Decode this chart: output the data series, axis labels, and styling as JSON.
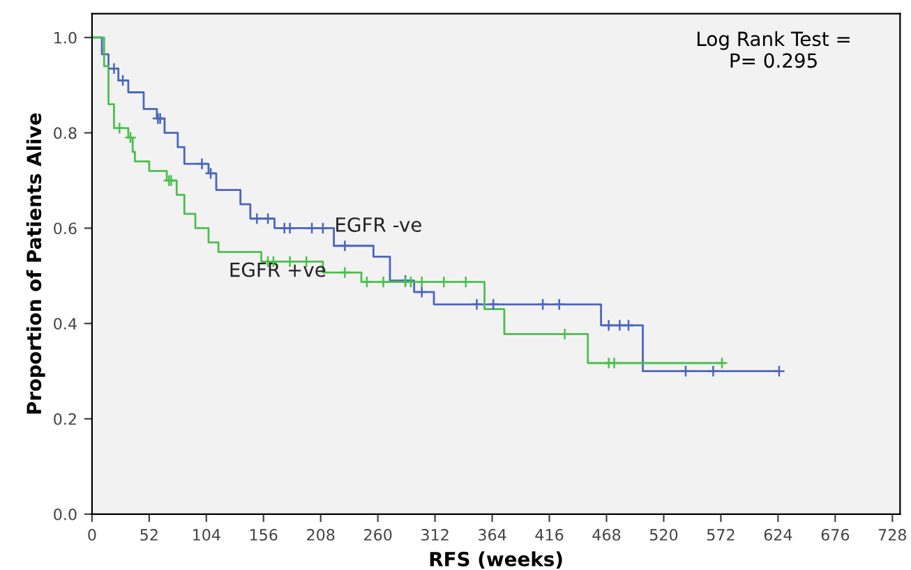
{
  "chart_data": {
    "type": "step",
    "xlabel": "RFS (weeks)",
    "ylabel": "Proportion of Patients Alive",
    "xlim": [
      0,
      735
    ],
    "xticks": [
      0,
      52,
      104,
      156,
      208,
      260,
      312,
      364,
      416,
      468,
      520,
      572,
      624,
      676,
      728
    ],
    "ylim": [
      0,
      1.05
    ],
    "yticks": [
      {
        "value": 0,
        "label": "0.0"
      },
      0.2,
      0.4,
      0.6,
      0.8,
      {
        "value": 1,
        "label": "1.0"
      }
    ],
    "grid": false,
    "legend": false,
    "annotations": [
      "Log Rank Test =\nP= 0.295"
    ],
    "series": [
      {
        "name": "EGFR -ve",
        "color": "#4a65c0",
        "x": [
          0,
          9,
          15,
          24,
          33,
          47,
          59,
          66,
          78,
          84,
          106,
          113,
          135,
          144,
          166,
          220,
          256,
          271,
          293,
          311,
          463,
          501,
          625
        ],
        "values": [
          1.0,
          0.965,
          0.935,
          0.91,
          0.885,
          0.85,
          0.83,
          0.8,
          0.77,
          0.735,
          0.715,
          0.68,
          0.65,
          0.62,
          0.6,
          0.563,
          0.54,
          0.49,
          0.466,
          0.44,
          0.396,
          0.3,
          0.3
        ]
      },
      {
        "name": "EGFR +ve",
        "color": "#4cbf4c",
        "x": [
          0,
          11,
          15,
          20,
          33,
          37,
          39,
          52,
          68,
          77,
          84,
          94,
          106,
          115,
          154,
          210,
          245,
          357,
          375,
          451,
          575
        ],
        "values": [
          1.0,
          0.94,
          0.86,
          0.81,
          0.79,
          0.76,
          0.74,
          0.72,
          0.7,
          0.67,
          0.63,
          0.6,
          0.57,
          0.55,
          0.53,
          0.507,
          0.487,
          0.43,
          0.378,
          0.317,
          0.317
        ]
      },
      {
        "type": "scatter",
        "marker": "cross",
        "color": "#4a65c0",
        "x": [
          20,
          28,
          60,
          62,
          100,
          108,
          150,
          160,
          175,
          180,
          200,
          210,
          230,
          285,
          300,
          350,
          365,
          410,
          425,
          470,
          480,
          488,
          540,
          565,
          625
        ],
        "values": [
          0.935,
          0.91,
          0.83,
          0.83,
          0.735,
          0.715,
          0.62,
          0.62,
          0.6,
          0.6,
          0.6,
          0.6,
          0.563,
          0.49,
          0.466,
          0.44,
          0.44,
          0.44,
          0.44,
          0.396,
          0.396,
          0.396,
          0.3,
          0.3,
          0.3
        ]
      },
      {
        "type": "scatter",
        "marker": "cross",
        "color": "#4cbf4c",
        "x": [
          25,
          35,
          70,
          72,
          160,
          165,
          180,
          195,
          230,
          250,
          265,
          285,
          290,
          300,
          320,
          340,
          430,
          470,
          475,
          573
        ],
        "values": [
          0.81,
          0.79,
          0.7,
          0.7,
          0.53,
          0.53,
          0.53,
          0.53,
          0.507,
          0.487,
          0.487,
          0.487,
          0.487,
          0.487,
          0.487,
          0.487,
          0.378,
          0.317,
          0.317,
          0.317
        ]
      }
    ]
  }
}
